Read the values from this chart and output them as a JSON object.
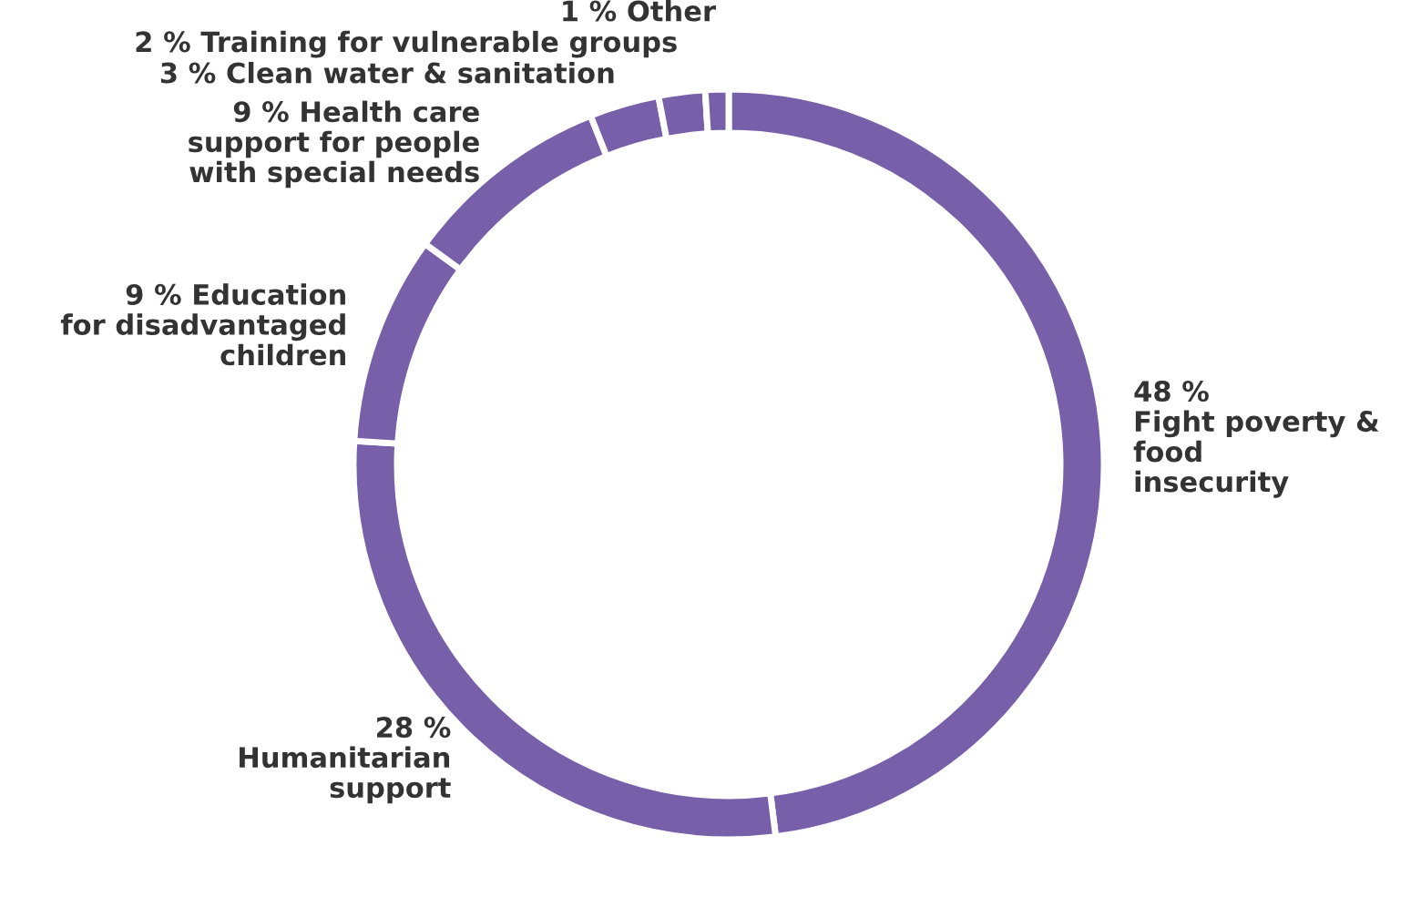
{
  "chart_data": {
    "type": "donut",
    "categories": [
      "Fight poverty &\nfood\ninsecurity",
      "Humanitarian\nsupport",
      "Education\nfor disadvantaged\nchildren",
      "Health care\nsupport for people\nwith special needs",
      "Clean water & sanitation",
      "Training for vulnerable groups",
      "Other"
    ],
    "values": [
      48,
      28,
      9,
      9,
      3,
      2,
      1
    ],
    "value_labels": [
      "48 %",
      "28 %",
      "9 %",
      "9 %",
      "3 %",
      "2 %",
      "1 %"
    ],
    "colors": [
      "#7760a9",
      "#7760a9",
      "#7760a9",
      "#7760a9",
      "#7760a9",
      "#7760a9",
      "#7760a9"
    ]
  }
}
